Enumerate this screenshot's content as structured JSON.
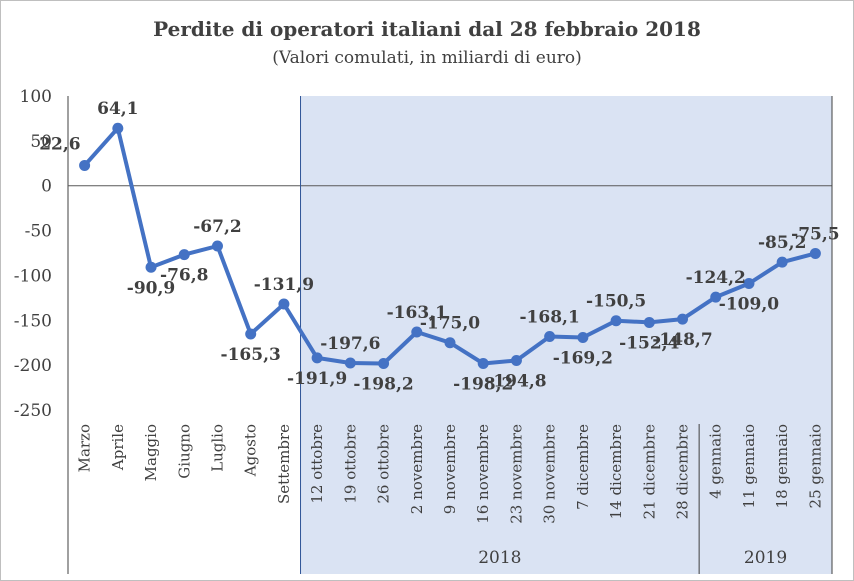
{
  "chart_data": {
    "type": "line",
    "title": "Perdite di operatori italiani  dal 28 febbraio 2018",
    "subtitle": "(Valori comulati, in miliardi di euro)",
    "xlabel": "",
    "ylabel": "",
    "ylim": [
      -250,
      100
    ],
    "yticks": [
      100,
      50,
      0,
      -50,
      -100,
      -150,
      -200,
      -250
    ],
    "ytick_labels": [
      "100",
      "50",
      "0",
      "-50",
      "-100",
      "-150",
      "-200",
      "-250"
    ],
    "categories": [
      "Marzo",
      "Aprile",
      "Maggio",
      "Giugno",
      "Luglio",
      "Agosto",
      "Settembre",
      "12 ottobre",
      "19 ottobre",
      "26 ottobre",
      "2 novembre",
      "9 novembre",
      "16 novembre",
      "23 novembre",
      "30 novembre",
      "7 dicembre",
      "14 dicembre",
      "21 dicembre",
      "28 dicembre",
      "4 gennaio",
      "11 gennaio",
      "18 gennaio",
      "25 gennaio"
    ],
    "series": [
      {
        "values": [
          22.6,
          64.1,
          -90.9,
          -76.8,
          -67.2,
          -165.3,
          -131.9,
          -191.9,
          -197.6,
          -198.2,
          -163.1,
          -175.0,
          -198.2,
          -194.8,
          -168.1,
          -169.2,
          -150.5,
          -152.4,
          -148.7,
          -124.2,
          -109.0,
          -85.2,
          -75.5
        ],
        "labels": [
          "22,6",
          "64,1",
          "-90,9",
          "-76,8",
          "-67,2",
          "-165,3",
          "-131,9",
          "-191,9",
          "-197,6",
          "-198,2",
          "-163,1",
          "-175,0",
          "-198,2",
          "-194,8",
          "-168,1",
          "-169,2",
          "-150,5",
          "-152,4",
          "-148,7",
          "-124,2",
          "-109,0",
          "-85,2",
          "-75,5"
        ],
        "label_pos": [
          "left",
          "above",
          "below",
          "below",
          "above",
          "below",
          "above",
          "below",
          "above",
          "below",
          "above",
          "above",
          "below",
          "below",
          "above",
          "below",
          "above",
          "below",
          "below",
          "above",
          "below",
          "above",
          "above"
        ],
        "color": "#4472c4"
      }
    ],
    "groups": [
      {
        "label": "2018",
        "start": "12 ottobre",
        "end": "28 dicembre"
      },
      {
        "label": "2019",
        "start": "4 gennaio",
        "end": "25 gennaio"
      }
    ],
    "shaded_from": "12 ottobre",
    "shade_color": "#dae3f3",
    "grid": false,
    "legend": "none"
  }
}
